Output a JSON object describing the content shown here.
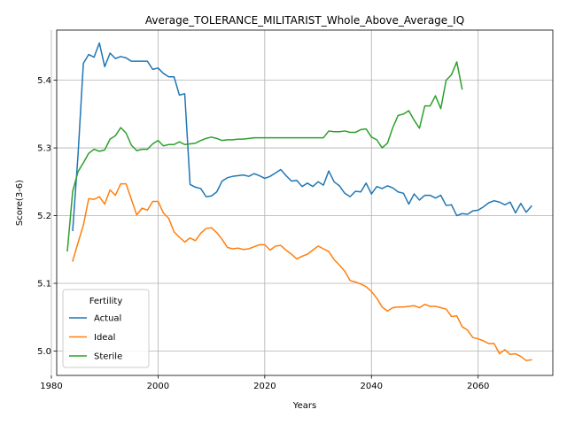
{
  "chart_data": {
    "type": "line",
    "title": "Average_TOLERANCE_MILITARIST_Whole_Above_Average_IQ",
    "xlabel": "Years",
    "ylabel": "Score(3-6)",
    "xlim": [
      1981,
      2074
    ],
    "ylim": [
      4.964,
      5.474
    ],
    "x_ticks": [
      1980,
      2000,
      2020,
      2040,
      2060
    ],
    "y_ticks": [
      5.0,
      5.1,
      5.2,
      5.3,
      5.4
    ],
    "y_tick_labels": [
      "5.0",
      "5.1",
      "5.2",
      "5.3",
      "5.4"
    ],
    "grid": true,
    "legend": {
      "title": "Fertility",
      "position": "lower-left"
    },
    "series": [
      {
        "name": "Actual",
        "color": "#1f77b4",
        "points": [
          [
            1984,
            5.178
          ],
          [
            1985,
            5.29
          ],
          [
            1986,
            5.425
          ],
          [
            1987,
            5.438
          ],
          [
            1988,
            5.434
          ],
          [
            1989,
            5.455
          ],
          [
            1990,
            5.42
          ],
          [
            1991,
            5.44
          ],
          [
            1992,
            5.432
          ],
          [
            1993,
            5.435
          ],
          [
            1994,
            5.433
          ],
          [
            1995,
            5.428
          ],
          [
            1996,
            5.428
          ],
          [
            1997,
            5.428
          ],
          [
            1998,
            5.428
          ],
          [
            1999,
            5.416
          ],
          [
            2000,
            5.418
          ],
          [
            2001,
            5.41
          ],
          [
            2002,
            5.405
          ],
          [
            2003,
            5.405
          ],
          [
            2004,
            5.378
          ],
          [
            2005,
            5.38
          ],
          [
            2006,
            5.246
          ],
          [
            2007,
            5.242
          ],
          [
            2008,
            5.24
          ],
          [
            2009,
            5.228
          ],
          [
            2010,
            5.229
          ],
          [
            2011,
            5.235
          ],
          [
            2012,
            5.251
          ],
          [
            2013,
            5.256
          ],
          [
            2014,
            5.258
          ],
          [
            2015,
            5.259
          ],
          [
            2016,
            5.26
          ],
          [
            2017,
            5.258
          ],
          [
            2018,
            5.262
          ],
          [
            2019,
            5.259
          ],
          [
            2020,
            5.255
          ],
          [
            2021,
            5.258
          ],
          [
            2022,
            5.263
          ],
          [
            2023,
            5.268
          ],
          [
            2024,
            5.259
          ],
          [
            2025,
            5.251
          ],
          [
            2026,
            5.252
          ],
          [
            2027,
            5.243
          ],
          [
            2028,
            5.248
          ],
          [
            2029,
            5.243
          ],
          [
            2030,
            5.25
          ],
          [
            2031,
            5.245
          ],
          [
            2032,
            5.266
          ],
          [
            2033,
            5.25
          ],
          [
            2034,
            5.244
          ],
          [
            2035,
            5.233
          ],
          [
            2036,
            5.228
          ],
          [
            2037,
            5.236
          ],
          [
            2038,
            5.235
          ],
          [
            2039,
            5.248
          ],
          [
            2040,
            5.232
          ],
          [
            2041,
            5.243
          ],
          [
            2042,
            5.24
          ],
          [
            2043,
            5.244
          ],
          [
            2044,
            5.241
          ],
          [
            2045,
            5.235
          ],
          [
            2046,
            5.233
          ],
          [
            2047,
            5.217
          ],
          [
            2048,
            5.232
          ],
          [
            2049,
            5.223
          ],
          [
            2050,
            5.23
          ],
          [
            2051,
            5.23
          ],
          [
            2052,
            5.226
          ],
          [
            2053,
            5.23
          ],
          [
            2054,
            5.215
          ],
          [
            2055,
            5.216
          ],
          [
            2056,
            5.2
          ],
          [
            2057,
            5.203
          ],
          [
            2058,
            5.202
          ],
          [
            2059,
            5.207
          ],
          [
            2060,
            5.208
          ],
          [
            2061,
            5.213
          ],
          [
            2062,
            5.219
          ],
          [
            2063,
            5.222
          ],
          [
            2064,
            5.22
          ],
          [
            2065,
            5.216
          ],
          [
            2066,
            5.22
          ],
          [
            2067,
            5.204
          ],
          [
            2068,
            5.218
          ],
          [
            2069,
            5.205
          ],
          [
            2070,
            5.214
          ]
        ]
      },
      {
        "name": "Ideal",
        "color": "#ff7f0e",
        "points": [
          [
            1984,
            5.133
          ],
          [
            1985,
            5.16
          ],
          [
            1986,
            5.186
          ],
          [
            1987,
            5.225
          ],
          [
            1988,
            5.224
          ],
          [
            1989,
            5.228
          ],
          [
            1990,
            5.217
          ],
          [
            1991,
            5.238
          ],
          [
            1992,
            5.23
          ],
          [
            1993,
            5.247
          ],
          [
            1994,
            5.247
          ],
          [
            1995,
            5.224
          ],
          [
            1996,
            5.201
          ],
          [
            1997,
            5.211
          ],
          [
            1998,
            5.208
          ],
          [
            1999,
            5.221
          ],
          [
            2000,
            5.221
          ],
          [
            2001,
            5.204
          ],
          [
            2002,
            5.196
          ],
          [
            2003,
            5.176
          ],
          [
            2004,
            5.168
          ],
          [
            2005,
            5.161
          ],
          [
            2006,
            5.167
          ],
          [
            2007,
            5.163
          ],
          [
            2008,
            5.174
          ],
          [
            2009,
            5.181
          ],
          [
            2010,
            5.182
          ],
          [
            2011,
            5.175
          ],
          [
            2012,
            5.165
          ],
          [
            2013,
            5.153
          ],
          [
            2014,
            5.151
          ],
          [
            2015,
            5.152
          ],
          [
            2016,
            5.15
          ],
          [
            2017,
            5.151
          ],
          [
            2018,
            5.154
          ],
          [
            2019,
            5.157
          ],
          [
            2020,
            5.157
          ],
          [
            2021,
            5.149
          ],
          [
            2022,
            5.155
          ],
          [
            2023,
            5.156
          ],
          [
            2024,
            5.149
          ],
          [
            2025,
            5.143
          ],
          [
            2026,
            5.136
          ],
          [
            2027,
            5.14
          ],
          [
            2028,
            5.143
          ],
          [
            2029,
            5.149
          ],
          [
            2030,
            5.155
          ],
          [
            2031,
            5.151
          ],
          [
            2032,
            5.147
          ],
          [
            2033,
            5.135
          ],
          [
            2034,
            5.127
          ],
          [
            2035,
            5.118
          ],
          [
            2036,
            5.104
          ],
          [
            2037,
            5.102
          ],
          [
            2038,
            5.099
          ],
          [
            2039,
            5.095
          ],
          [
            2040,
            5.088
          ],
          [
            2041,
            5.078
          ],
          [
            2042,
            5.065
          ],
          [
            2043,
            5.059
          ],
          [
            2044,
            5.064
          ],
          [
            2045,
            5.065
          ],
          [
            2046,
            5.065
          ],
          [
            2047,
            5.066
          ],
          [
            2048,
            5.067
          ],
          [
            2049,
            5.064
          ],
          [
            2050,
            5.069
          ],
          [
            2051,
            5.066
          ],
          [
            2052,
            5.066
          ],
          [
            2053,
            5.064
          ],
          [
            2054,
            5.062
          ],
          [
            2055,
            5.051
          ],
          [
            2056,
            5.052
          ],
          [
            2057,
            5.036
          ],
          [
            2058,
            5.031
          ],
          [
            2059,
            5.02
          ],
          [
            2060,
            5.018
          ],
          [
            2061,
            5.015
          ],
          [
            2062,
            5.011
          ],
          [
            2063,
            5.011
          ],
          [
            2064,
            4.996
          ],
          [
            2065,
            5.002
          ],
          [
            2066,
            4.995
          ],
          [
            2067,
            4.996
          ],
          [
            2068,
            4.992
          ],
          [
            2069,
            4.986
          ],
          [
            2070,
            4.987
          ]
        ]
      },
      {
        "name": "Sterile",
        "color": "#2ca02c",
        "points": [
          [
            1983,
            5.148
          ],
          [
            1984,
            5.236
          ],
          [
            1985,
            5.265
          ],
          [
            1986,
            5.278
          ],
          [
            1987,
            5.292
          ],
          [
            1988,
            5.298
          ],
          [
            1989,
            5.295
          ],
          [
            1990,
            5.297
          ],
          [
            1991,
            5.313
          ],
          [
            1992,
            5.318
          ],
          [
            1993,
            5.33
          ],
          [
            1994,
            5.322
          ],
          [
            1995,
            5.304
          ],
          [
            1996,
            5.296
          ],
          [
            1997,
            5.298
          ],
          [
            1998,
            5.298
          ],
          [
            1999,
            5.306
          ],
          [
            2000,
            5.311
          ],
          [
            2001,
            5.303
          ],
          [
            2002,
            5.305
          ],
          [
            2003,
            5.305
          ],
          [
            2004,
            5.309
          ],
          [
            2005,
            5.305
          ],
          [
            2006,
            5.306
          ],
          [
            2007,
            5.307
          ],
          [
            2008,
            5.311
          ],
          [
            2009,
            5.314
          ],
          [
            2010,
            5.316
          ],
          [
            2011,
            5.314
          ],
          [
            2012,
            5.311
          ],
          [
            2013,
            5.312
          ],
          [
            2014,
            5.312
          ],
          [
            2015,
            5.313
          ],
          [
            2016,
            5.313
          ],
          [
            2017,
            5.314
          ],
          [
            2018,
            5.315
          ],
          [
            2019,
            5.315
          ],
          [
            2020,
            5.315
          ],
          [
            2021,
            5.315
          ],
          [
            2022,
            5.315
          ],
          [
            2023,
            5.315
          ],
          [
            2024,
            5.315
          ],
          [
            2025,
            5.315
          ],
          [
            2026,
            5.315
          ],
          [
            2027,
            5.315
          ],
          [
            2028,
            5.315
          ],
          [
            2029,
            5.315
          ],
          [
            2030,
            5.315
          ],
          [
            2031,
            5.315
          ],
          [
            2032,
            5.325
          ],
          [
            2033,
            5.324
          ],
          [
            2034,
            5.324
          ],
          [
            2035,
            5.325
          ],
          [
            2036,
            5.323
          ],
          [
            2037,
            5.323
          ],
          [
            2038,
            5.327
          ],
          [
            2039,
            5.328
          ],
          [
            2040,
            5.316
          ],
          [
            2041,
            5.312
          ],
          [
            2042,
            5.3
          ],
          [
            2043,
            5.307
          ],
          [
            2044,
            5.33
          ],
          [
            2045,
            5.348
          ],
          [
            2046,
            5.35
          ],
          [
            2047,
            5.355
          ],
          [
            2048,
            5.341
          ],
          [
            2049,
            5.329
          ],
          [
            2050,
            5.362
          ],
          [
            2051,
            5.362
          ],
          [
            2052,
            5.377
          ],
          [
            2053,
            5.358
          ],
          [
            2054,
            5.4
          ],
          [
            2055,
            5.408
          ],
          [
            2056,
            5.427
          ],
          [
            2057,
            5.387
          ]
        ]
      }
    ]
  }
}
